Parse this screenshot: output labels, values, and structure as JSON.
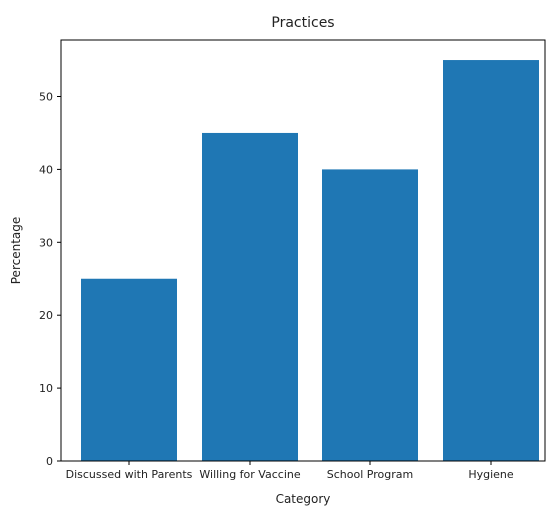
{
  "chart_data": {
    "type": "bar",
    "title": "Practices",
    "xlabel": "Category",
    "ylabel": "Percentage",
    "categories": [
      "Discussed with Parents",
      "Willing for Vaccine",
      "School Program",
      "Hygiene"
    ],
    "values": [
      25,
      45,
      40,
      55
    ],
    "ylim": [
      0,
      57.75
    ],
    "yticks": [
      0,
      10,
      20,
      30,
      40,
      50
    ],
    "grid": false,
    "legend": "none",
    "bar_color": "#1f77b4"
  }
}
